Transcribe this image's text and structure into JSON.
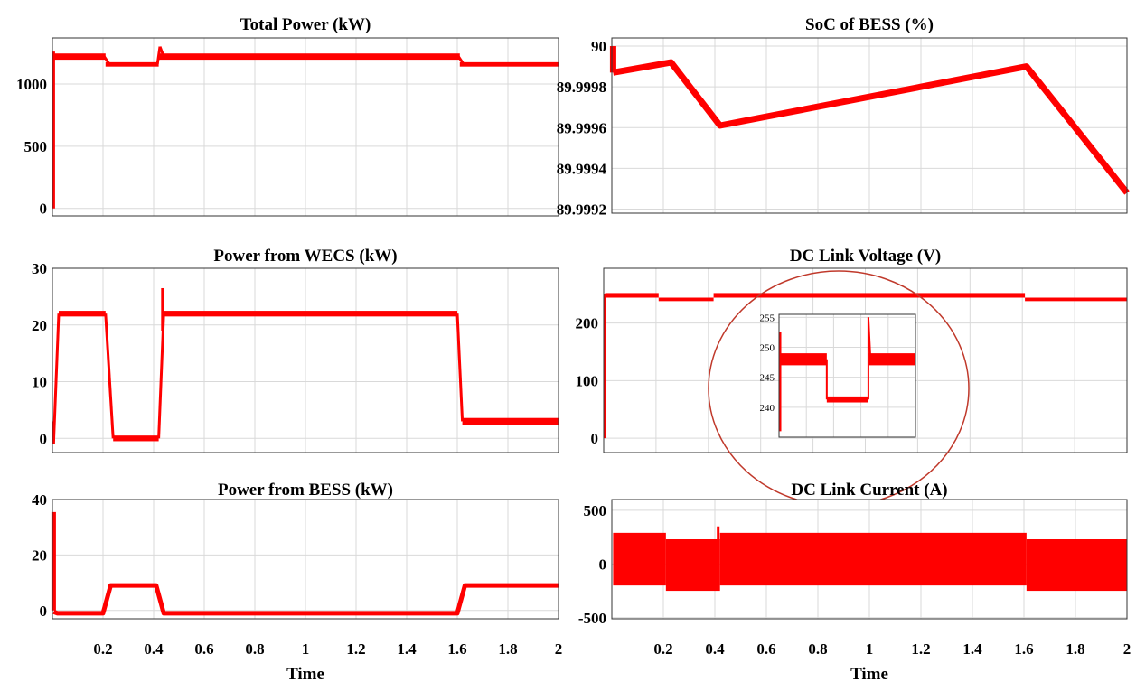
{
  "figure": {
    "xlabel": "Time"
  },
  "chart_data": [
    {
      "id": "total-power",
      "type": "line",
      "title": "Total Power (kW)",
      "xlabel": "",
      "ylabel": "",
      "xlim": [
        0,
        2
      ],
      "ylim": [
        -60,
        1370
      ],
      "xticks": [
        0.2,
        0.4,
        0.6,
        0.8,
        1,
        1.2,
        1.4,
        1.6,
        1.8,
        2
      ],
      "show_xtick_labels": false,
      "yticks": [
        0,
        500,
        1000
      ],
      "ytick_labels": [
        "0",
        "500",
        "1000"
      ],
      "grid": true,
      "color": "#ff0000",
      "series": [
        {
          "bands": [
            {
              "x": [
                0.005,
                0.21
              ],
              "lo": 1195,
              "hi": 1245
            },
            {
              "x": [
                0.21,
                0.42
              ],
              "lo": 1140,
              "hi": 1175
            },
            {
              "x": [
                0.42,
                1.61
              ],
              "lo": 1195,
              "hi": 1245
            },
            {
              "x": [
                1.61,
                2.0
              ],
              "lo": 1140,
              "hi": 1175
            }
          ],
          "lines": [
            {
              "x": [
                0.005,
                0.005
              ],
              "y": [
                0,
                1260
              ]
            },
            {
              "x": [
                0.205,
                0.225
              ],
              "y": [
                1220,
                1160
              ]
            },
            {
              "x": [
                0.415,
                0.425
              ],
              "y": [
                1160,
                1300
              ]
            },
            {
              "x": [
                0.425,
                0.44
              ],
              "y": [
                1300,
                1220
              ]
            },
            {
              "x": [
                1.605,
                1.625
              ],
              "y": [
                1220,
                1160
              ]
            }
          ]
        }
      ]
    },
    {
      "id": "soc-bess",
      "type": "line",
      "title": "SoC of BESS (%)",
      "xlabel": "",
      "ylabel": "",
      "xlim": [
        0,
        2
      ],
      "ylim": [
        89.99918,
        90.00004
      ],
      "xticks": [
        0.2,
        0.4,
        0.6,
        0.8,
        1,
        1.2,
        1.4,
        1.6,
        1.8,
        2
      ],
      "show_xtick_labels": false,
      "yticks": [
        89.9992,
        89.9994,
        89.9996,
        89.9998,
        90
      ],
      "ytick_labels": [
        "89.9992",
        "89.9994",
        "89.9996",
        "89.9998",
        "90"
      ],
      "grid": true,
      "color": "#ff0000",
      "series": [
        {
          "lines": [
            {
              "x": [
                0.005,
                0.005
              ],
              "y": [
                89.99987,
                90.0
              ]
            },
            {
              "x": [
                0.005,
                0.23,
                0.42,
                1.61,
                2.0
              ],
              "y": [
                89.99987,
                89.99992,
                89.99961,
                89.9999,
                89.99928
              ]
            }
          ],
          "width": 7
        }
      ]
    },
    {
      "id": "power-wecs",
      "type": "line",
      "title": "Power from WECS (kW)",
      "xlabel": "",
      "ylabel": "",
      "xlim": [
        0,
        2
      ],
      "ylim": [
        -2.5,
        30
      ],
      "xticks": [
        0.2,
        0.4,
        0.6,
        0.8,
        1,
        1.2,
        1.4,
        1.6,
        1.8,
        2
      ],
      "show_xtick_labels": false,
      "yticks": [
        0,
        10,
        20,
        30
      ],
      "ytick_labels": [
        "0",
        "10",
        "20",
        "30"
      ],
      "grid": true,
      "color": "#ff0000",
      "series": [
        {
          "bands": [
            {
              "x": [
                0.025,
                0.21
              ],
              "lo": 21.5,
              "hi": 22.5
            },
            {
              "x": [
                0.24,
                0.42
              ],
              "lo": -0.5,
              "hi": 0.5
            },
            {
              "x": [
                0.44,
                1.6
              ],
              "lo": 21.5,
              "hi": 22.5
            },
            {
              "x": [
                1.62,
                2.0
              ],
              "lo": 2.4,
              "hi": 3.6
            }
          ],
          "lines": [
            {
              "x": [
                0.005,
                0.005
              ],
              "y": [
                -1,
                3
              ]
            },
            {
              "x": [
                0.005,
                0.025
              ],
              "y": [
                -0.5,
                22
              ]
            },
            {
              "x": [
                0.21,
                0.24
              ],
              "y": [
                22,
                0
              ]
            },
            {
              "x": [
                0.42,
                0.44
              ],
              "y": [
                0,
                22
              ]
            },
            {
              "x": [
                0.435,
                0.435
              ],
              "y": [
                19,
                26.5
              ]
            },
            {
              "x": [
                1.6,
                1.62
              ],
              "y": [
                22,
                3
              ]
            }
          ]
        }
      ]
    },
    {
      "id": "dc-link-voltage",
      "type": "line",
      "title": "DC Link Voltage (V)",
      "xlabel": "",
      "ylabel": "",
      "xlim": [
        0,
        2
      ],
      "ylim": [
        -25,
        295
      ],
      "xticks": [
        0.2,
        0.4,
        0.6,
        0.8,
        1,
        1.2,
        1.4,
        1.6,
        1.8,
        2
      ],
      "show_xtick_labels": false,
      "yticks": [
        0,
        100,
        200
      ],
      "ytick_labels": [
        "0",
        "100",
        "200"
      ],
      "grid": true,
      "color": "#ff0000",
      "series": [
        {
          "bands": [
            {
              "x": [
                0.005,
                0.21
              ],
              "lo": 244,
              "hi": 252
            },
            {
              "x": [
                0.21,
                0.42
              ],
              "lo": 238,
              "hi": 244
            },
            {
              "x": [
                0.42,
                1.61
              ],
              "lo": 244,
              "hi": 252
            },
            {
              "x": [
                1.61,
                2.0
              ],
              "lo": 238,
              "hi": 244
            }
          ],
          "lines": [
            {
              "x": [
                0.005,
                0.005
              ],
              "y": [
                0,
                250
              ]
            }
          ]
        }
      ],
      "inset": {
        "xlim": [
          0,
          1
        ],
        "ylim": [
          235,
          255.5
        ],
        "yticks": [
          240,
          245,
          250,
          255
        ],
        "ytick_labels": [
          "240",
          "245",
          "250",
          "255"
        ],
        "bands": [
          {
            "x": [
              0.01,
              0.35
            ],
            "lo": 247,
            "hi": 249
          },
          {
            "x": [
              0.35,
              0.65
            ],
            "lo": 240.8,
            "hi": 241.8
          },
          {
            "x": [
              0.66,
              1.0
            ],
            "lo": 247,
            "hi": 249
          }
        ],
        "lines": [
          {
            "x": [
              0.01,
              0.01
            ],
            "y": [
              236,
              252.5
            ]
          },
          {
            "x": [
              0.35,
              0.35
            ],
            "y": [
              248,
              241.3
            ]
          },
          {
            "x": [
              0.655,
              0.655
            ],
            "y": [
              241.3,
              255
            ]
          },
          {
            "x": [
              0.655,
              0.67
            ],
            "y": [
              255,
              248
            ]
          }
        ]
      }
    },
    {
      "id": "power-bess",
      "type": "line",
      "title": "Power from BESS (kW)",
      "xlabel": "Time",
      "ylabel": "",
      "xlim": [
        0,
        2
      ],
      "ylim": [
        -3,
        40
      ],
      "xticks": [
        0.2,
        0.4,
        0.6,
        0.8,
        1,
        1.2,
        1.4,
        1.6,
        1.8,
        2
      ],
      "xtick_labels": [
        "0.2",
        "0.4",
        "0.6",
        "0.8",
        "1",
        "1.2",
        "1.4",
        "1.6",
        "1.8",
        "2"
      ],
      "show_xtick_labels": true,
      "yticks": [
        0,
        20,
        40
      ],
      "ytick_labels": [
        "0",
        "20",
        "40"
      ],
      "grid": true,
      "color": "#ff0000",
      "series": [
        {
          "lines": [
            {
              "x": [
                0.005,
                0.005
              ],
              "y": [
                0,
                35.5
              ]
            },
            {
              "x": [
                0.005,
                0.02,
                0.2,
                0.23,
                0.41,
                0.44,
                1.6,
                1.63,
                2.0
              ],
              "y": [
                -0.5,
                -1,
                -1,
                9,
                9,
                -1,
                -1,
                9,
                9
              ]
            }
          ],
          "width": 5
        }
      ]
    },
    {
      "id": "dc-link-current",
      "type": "area",
      "title": "DC Link Current (A)",
      "xlabel": "Time",
      "ylabel": "",
      "xlim": [
        0,
        2
      ],
      "ylim": [
        -510,
        600
      ],
      "xticks": [
        0.2,
        0.4,
        0.6,
        0.8,
        1,
        1.2,
        1.4,
        1.6,
        1.8,
        2
      ],
      "xtick_labels": [
        "0.2",
        "0.4",
        "0.6",
        "0.8",
        "1",
        "1.2",
        "1.4",
        "1.6",
        "1.8",
        "2"
      ],
      "show_xtick_labels": true,
      "yticks": [
        -500,
        0,
        500
      ],
      "ytick_labels": [
        "-500",
        "0",
        "500"
      ],
      "grid": true,
      "color": "#ff0000",
      "series": [
        {
          "bands": [
            {
              "x": [
                0.005,
                0.21
              ],
              "lo": -200,
              "hi": 290
            },
            {
              "x": [
                0.21,
                0.42
              ],
              "lo": -250,
              "hi": 230
            },
            {
              "x": [
                0.42,
                1.61
              ],
              "lo": -200,
              "hi": 290
            },
            {
              "x": [
                1.61,
                2.0
              ],
              "lo": -250,
              "hi": 230
            }
          ],
          "lines": [
            {
              "x": [
                0.413,
                0.413
              ],
              "y": [
                230,
                350
              ]
            }
          ]
        }
      ]
    }
  ]
}
